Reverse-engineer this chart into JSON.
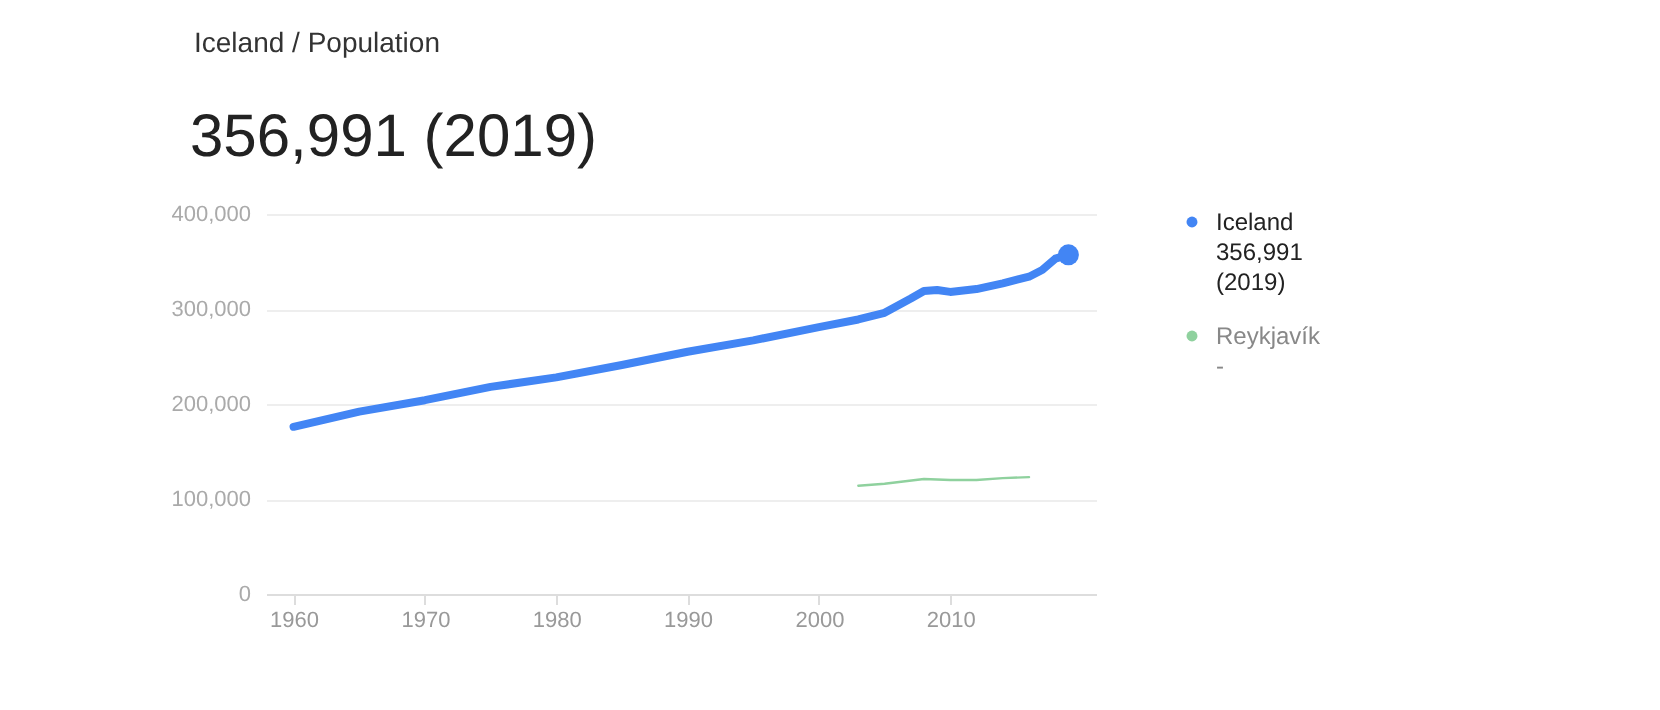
{
  "chart_data": {
    "type": "line",
    "title": "356,991 (2019)",
    "annotations": [
      "Iceland / Population",
      "356,991\n(2019)",
      "-"
    ],
    "xlim": [
      1957.9,
      2021.1
    ],
    "xticks": [
      1960,
      1970,
      1980,
      1990,
      2000,
      2010
    ],
    "ylim": [
      0,
      400000
    ],
    "yticks": [
      0,
      {
        "value": 100000,
        "label": "100,000"
      },
      {
        "value": 200000,
        "label": "200,000"
      },
      {
        "value": 300000,
        "label": "300,000"
      },
      {
        "value": 400000,
        "label": "400,000"
      }
    ],
    "grid": "y",
    "legend": "right",
    "marker": "none",
    "line_style": "solid",
    "series": [
      {
        "name": "Iceland",
        "color": "#4285f4",
        "x": [
          1960,
          1965,
          1970,
          1975,
          1980,
          1985,
          1990,
          1995,
          2000,
          2003,
          2005,
          2007,
          2008,
          2009,
          2010,
          2012,
          2014,
          2016,
          2017,
          2018,
          2019
        ],
        "values": [
          176000,
          192000,
          204000,
          218000,
          228000,
          241000,
          255000,
          267000,
          281000,
          289000,
          296000,
          311000,
          319000,
          320000,
          318000,
          321000,
          327000,
          334000,
          341000,
          353000,
          356991
        ]
      },
      {
        "name": "Reykjavík",
        "color": "#8fd19e",
        "x": [
          2003,
          2005,
          2008,
          2010,
          2012,
          2014,
          2016
        ],
        "values": [
          114000,
          116000,
          121000,
          120000,
          120000,
          122000,
          123000
        ]
      },
      {
        "type": "scatter",
        "marker": "circle",
        "color": "#4285f4",
        "x": [
          2019
        ],
        "values": [
          356991
        ]
      }
    ]
  }
}
